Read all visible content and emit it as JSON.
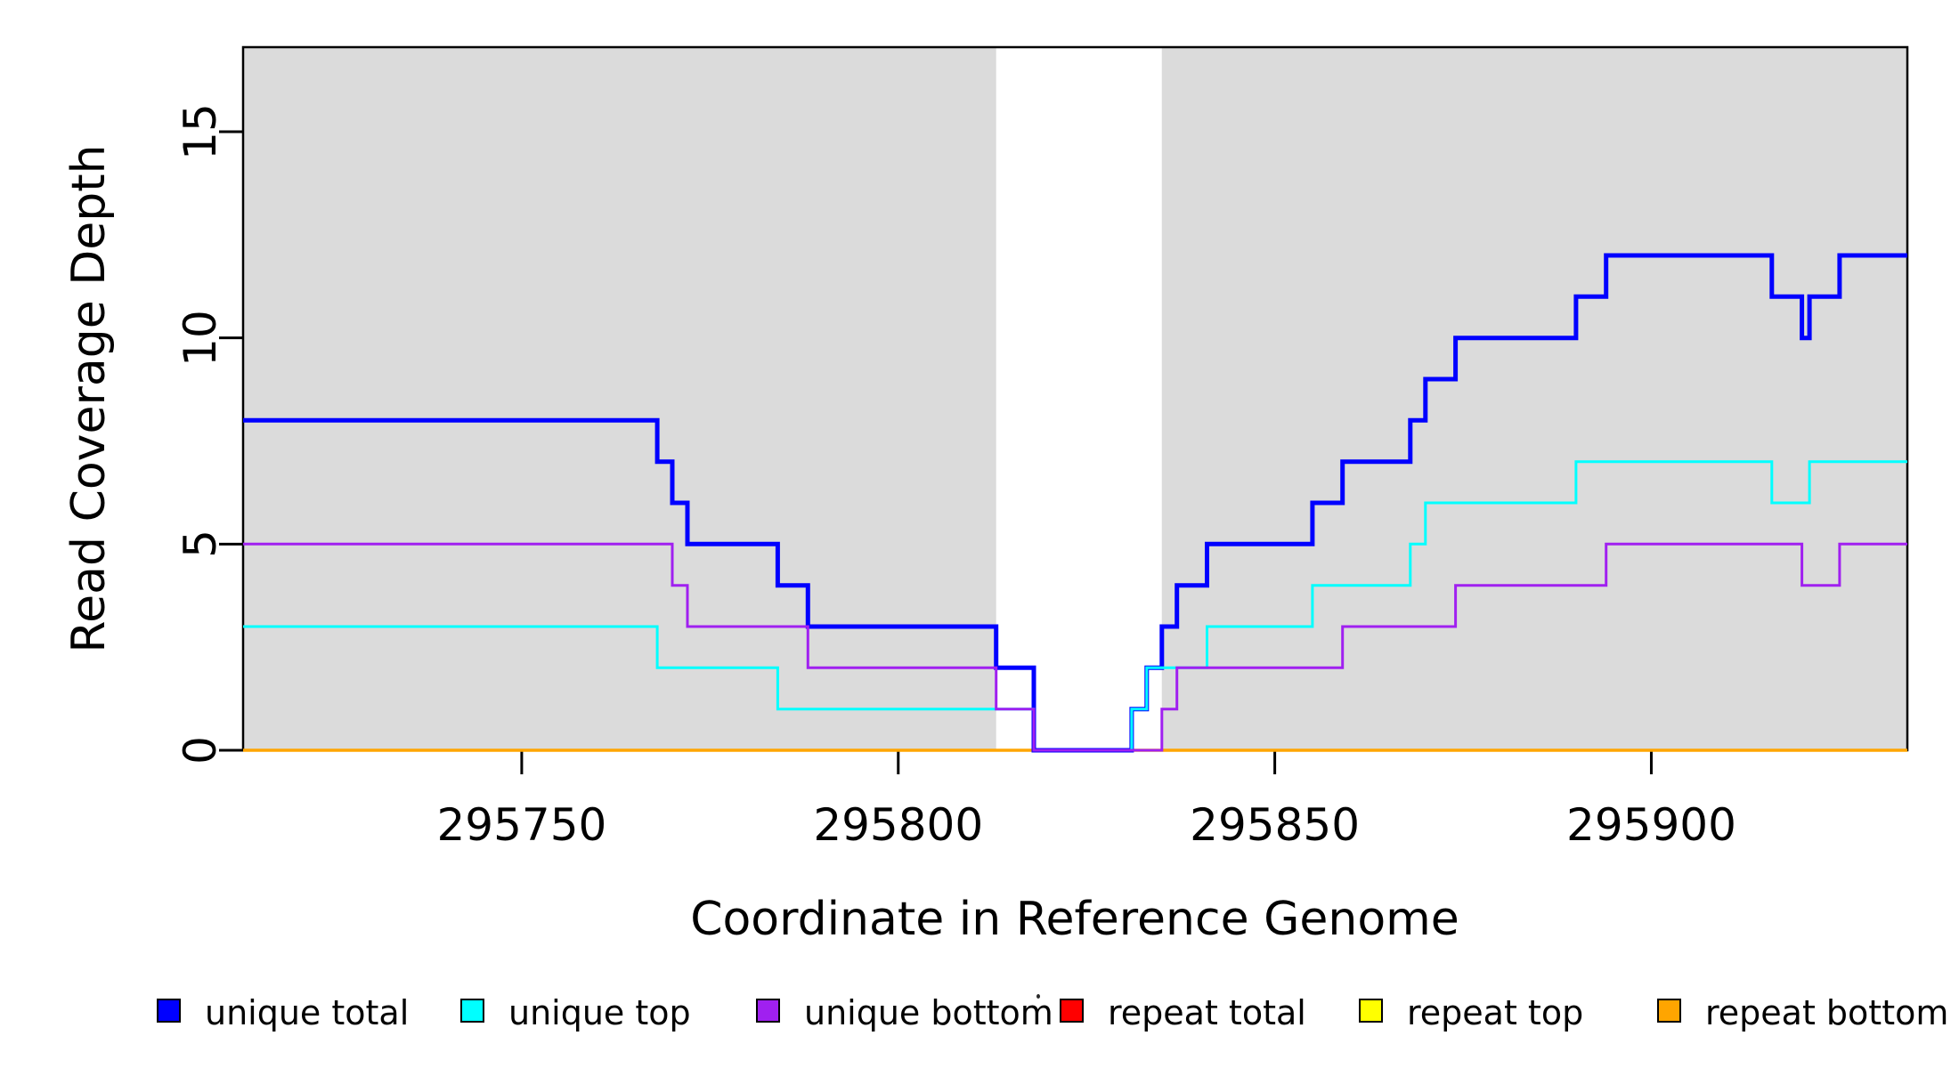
{
  "axes": {
    "x": {
      "label": "Coordinate in Reference Genome",
      "tick_labels": [
        "295750",
        "295800",
        "295850",
        "295900"
      ],
      "tick_values": [
        295750,
        295800,
        295850,
        295900
      ],
      "min": 295713,
      "max": 295934
    },
    "y": {
      "label": "Read Coverage Depth",
      "tick_labels": [
        "0",
        "5",
        "10",
        "15"
      ],
      "tick_values": [
        0,
        5,
        10,
        15
      ],
      "min": 0,
      "max": 17.05
    }
  },
  "shaded_regions": {
    "color": "#DBDBDB",
    "ranges": [
      [
        295713,
        295813
      ],
      [
        295835,
        295934
      ]
    ]
  },
  "chart_data": {
    "type": "line",
    "step": true,
    "title": "",
    "xlabel": "Coordinate in Reference Genome",
    "ylabel": "Read Coverage Depth",
    "xlim": [
      295713,
      295934
    ],
    "ylim": [
      0,
      17.05
    ],
    "grid": false,
    "legend_position": "bottom",
    "series": [
      {
        "name": "repeat total",
        "color": "#FF0000",
        "line_width": 3,
        "points": [
          [
            295713,
            0
          ]
        ]
      },
      {
        "name": "repeat top",
        "color": "#FFFF00",
        "line_width": 3,
        "points": [
          [
            295713,
            0
          ]
        ]
      },
      {
        "name": "repeat bottom",
        "color": "#FFA500",
        "line_width": 3.5,
        "points": [
          [
            295713,
            0
          ]
        ]
      },
      {
        "name": "unique total",
        "color": "#0000FF",
        "line_width": 5,
        "points": [
          [
            295713,
            8
          ],
          [
            295768,
            7
          ],
          [
            295770,
            6
          ],
          [
            295772,
            5
          ],
          [
            295784,
            4
          ],
          [
            295788,
            3
          ],
          [
            295813,
            2
          ],
          [
            295818,
            0
          ],
          [
            295831,
            1
          ],
          [
            295833,
            2
          ],
          [
            295835,
            3
          ],
          [
            295837,
            4
          ],
          [
            295841,
            5
          ],
          [
            295855,
            6
          ],
          [
            295859,
            7
          ],
          [
            295868,
            8
          ],
          [
            295870,
            9
          ],
          [
            295874,
            10
          ],
          [
            295890,
            11
          ],
          [
            295894,
            12
          ],
          [
            295916,
            11
          ],
          [
            295920,
            10
          ],
          [
            295921,
            11
          ],
          [
            295925,
            12
          ]
        ]
      },
      {
        "name": "unique top",
        "color": "#00FFFF",
        "line_width": 3,
        "points": [
          [
            295713,
            3
          ],
          [
            295768,
            2
          ],
          [
            295784,
            1
          ],
          [
            295818,
            0
          ],
          [
            295831,
            1
          ],
          [
            295833,
            2
          ],
          [
            295841,
            3
          ],
          [
            295855,
            4
          ],
          [
            295868,
            5
          ],
          [
            295870,
            6
          ],
          [
            295890,
            7
          ],
          [
            295916,
            6
          ],
          [
            295921,
            7
          ]
        ]
      },
      {
        "name": "unique bottom",
        "color": "#A020F0",
        "line_width": 3,
        "points": [
          [
            295713,
            5
          ],
          [
            295770,
            4
          ],
          [
            295772,
            3
          ],
          [
            295788,
            2
          ],
          [
            295813,
            1
          ],
          [
            295818,
            0
          ],
          [
            295835,
            1
          ],
          [
            295837,
            2
          ],
          [
            295859,
            3
          ],
          [
            295874,
            4
          ],
          [
            295894,
            5
          ],
          [
            295920,
            4
          ],
          [
            295925,
            5
          ]
        ]
      }
    ]
  },
  "legend": {
    "items": [
      {
        "label": "unique total",
        "color": "#0000FF"
      },
      {
        "label": "unique top",
        "color": "#00FFFF"
      },
      {
        "label": "unique bottom",
        "color": "#A020F0"
      },
      {
        "label": "repeat total",
        "color": "#FF0000"
      },
      {
        "label": "repeat top",
        "color": "#FFFF00"
      },
      {
        "label": "repeat bottom",
        "color": "#FFA500"
      }
    ]
  }
}
